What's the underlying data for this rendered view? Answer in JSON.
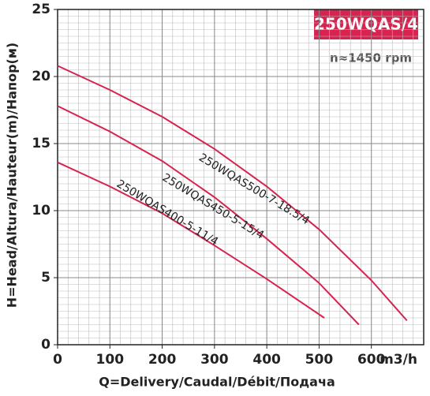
{
  "chart_data": {
    "type": "line",
    "title": "250WQAS/4",
    "subtitle": "n≈1450 rpm",
    "x_label": "Q=Delivery/Caudal/Débit/Подача",
    "x_unit": "m3/h",
    "y_label": "H=Head/Altura/Hauteur(m)/Напор(м)",
    "xlim": [
      0,
      700
    ],
    "xticks": [
      0,
      100,
      200,
      300,
      400,
      500,
      600
    ],
    "ylim": [
      0,
      25
    ],
    "yticks": [
      0,
      5,
      10,
      15,
      20,
      25
    ],
    "grid": true,
    "series": [
      {
        "name": "250WQAS500-7-18.5/4",
        "color": "#d6234f",
        "x": [
          0,
          100,
          200,
          300,
          400,
          500,
          600,
          668
        ],
        "values": [
          20.8,
          19.0,
          17.0,
          14.6,
          11.8,
          8.6,
          4.8,
          1.8
        ]
      },
      {
        "name": "250WQAS450-5-15/4",
        "color": "#d6234f",
        "x": [
          0,
          100,
          200,
          300,
          400,
          500,
          576
        ],
        "values": [
          17.8,
          15.9,
          13.7,
          11.0,
          7.9,
          4.6,
          1.5
        ]
      },
      {
        "name": "250WQAS400-5-11/4",
        "color": "#d6234f",
        "x": [
          0,
          100,
          200,
          300,
          400,
          510
        ],
        "values": [
          13.6,
          11.8,
          9.8,
          7.4,
          4.9,
          2.0
        ]
      }
    ]
  }
}
